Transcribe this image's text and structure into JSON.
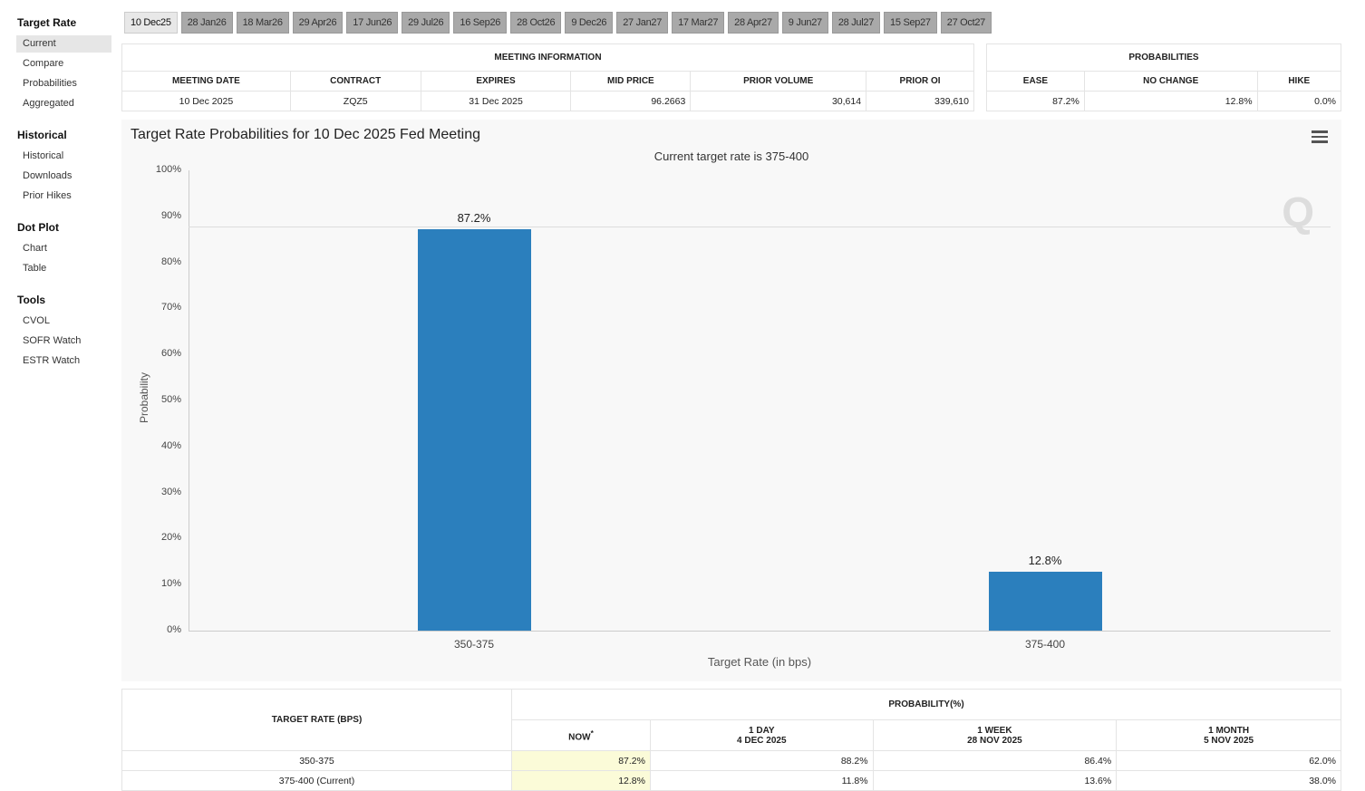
{
  "sidebar": {
    "sections": [
      {
        "title": "Target Rate",
        "items": [
          "Current",
          "Compare",
          "Probabilities",
          "Aggregated"
        ]
      },
      {
        "title": "Historical",
        "items": [
          "Historical",
          "Downloads",
          "Prior Hikes"
        ]
      },
      {
        "title": "Dot Plot",
        "items": [
          "Chart",
          "Table"
        ]
      },
      {
        "title": "Tools",
        "items": [
          "CVOL",
          "SOFR Watch",
          "ESTR Watch"
        ]
      }
    ],
    "active": "Current"
  },
  "tabs": [
    "10 Dec25",
    "28 Jan26",
    "18 Mar26",
    "29 Apr26",
    "17 Jun26",
    "29 Jul26",
    "16 Sep26",
    "28 Oct26",
    "9 Dec26",
    "27 Jan27",
    "17 Mar27",
    "28 Apr27",
    "9 Jun27",
    "28 Jul27",
    "15 Sep27",
    "27 Oct27"
  ],
  "meeting": {
    "title": "MEETING INFORMATION",
    "headers": [
      "MEETING DATE",
      "CONTRACT",
      "EXPIRES",
      "MID PRICE",
      "PRIOR VOLUME",
      "PRIOR OI"
    ],
    "row": [
      "10 Dec 2025",
      "ZQZ5",
      "31 Dec 2025",
      "96.2663",
      "30,614",
      "339,610"
    ]
  },
  "probs": {
    "title": "PROBABILITIES",
    "headers": [
      "EASE",
      "NO CHANGE",
      "HIKE"
    ],
    "row": [
      "87.2%",
      "12.8%",
      "0.0%"
    ]
  },
  "chart_data": {
    "type": "bar",
    "title": "Target Rate Probabilities for 10 Dec 2025 Fed Meeting",
    "subtitle": "Current target rate is 375-400",
    "xlabel": "Target Rate (in bps)",
    "ylabel": "Probability",
    "categories": [
      "350-375",
      "375-400"
    ],
    "values": [
      87.2,
      12.8
    ],
    "data_labels": [
      "87.2%",
      "12.8%"
    ],
    "ylim": [
      0,
      100
    ],
    "yticks": [
      "0%",
      "10%",
      "20%",
      "30%",
      "40%",
      "50%",
      "60%",
      "70%",
      "80%",
      "90%",
      "100%"
    ],
    "color": "#2b7fbd",
    "grid": false,
    "legend": "none"
  },
  "bottom": {
    "rate_header": "TARGET RATE (BPS)",
    "prob_header": "PROBABILITY(%)",
    "cols": [
      {
        "l1": "NOW",
        "l2": "",
        "sup": "*"
      },
      {
        "l1": "1 DAY",
        "l2": "4 DEC 2025"
      },
      {
        "l1": "1 WEEK",
        "l2": "28 NOV 2025"
      },
      {
        "l1": "1 MONTH",
        "l2": "5 NOV 2025"
      }
    ],
    "rows": [
      [
        "350-375",
        "87.2%",
        "88.2%",
        "86.4%",
        "62.0%"
      ],
      [
        "375-400 (Current)",
        "12.8%",
        "11.8%",
        "13.6%",
        "38.0%"
      ]
    ]
  }
}
